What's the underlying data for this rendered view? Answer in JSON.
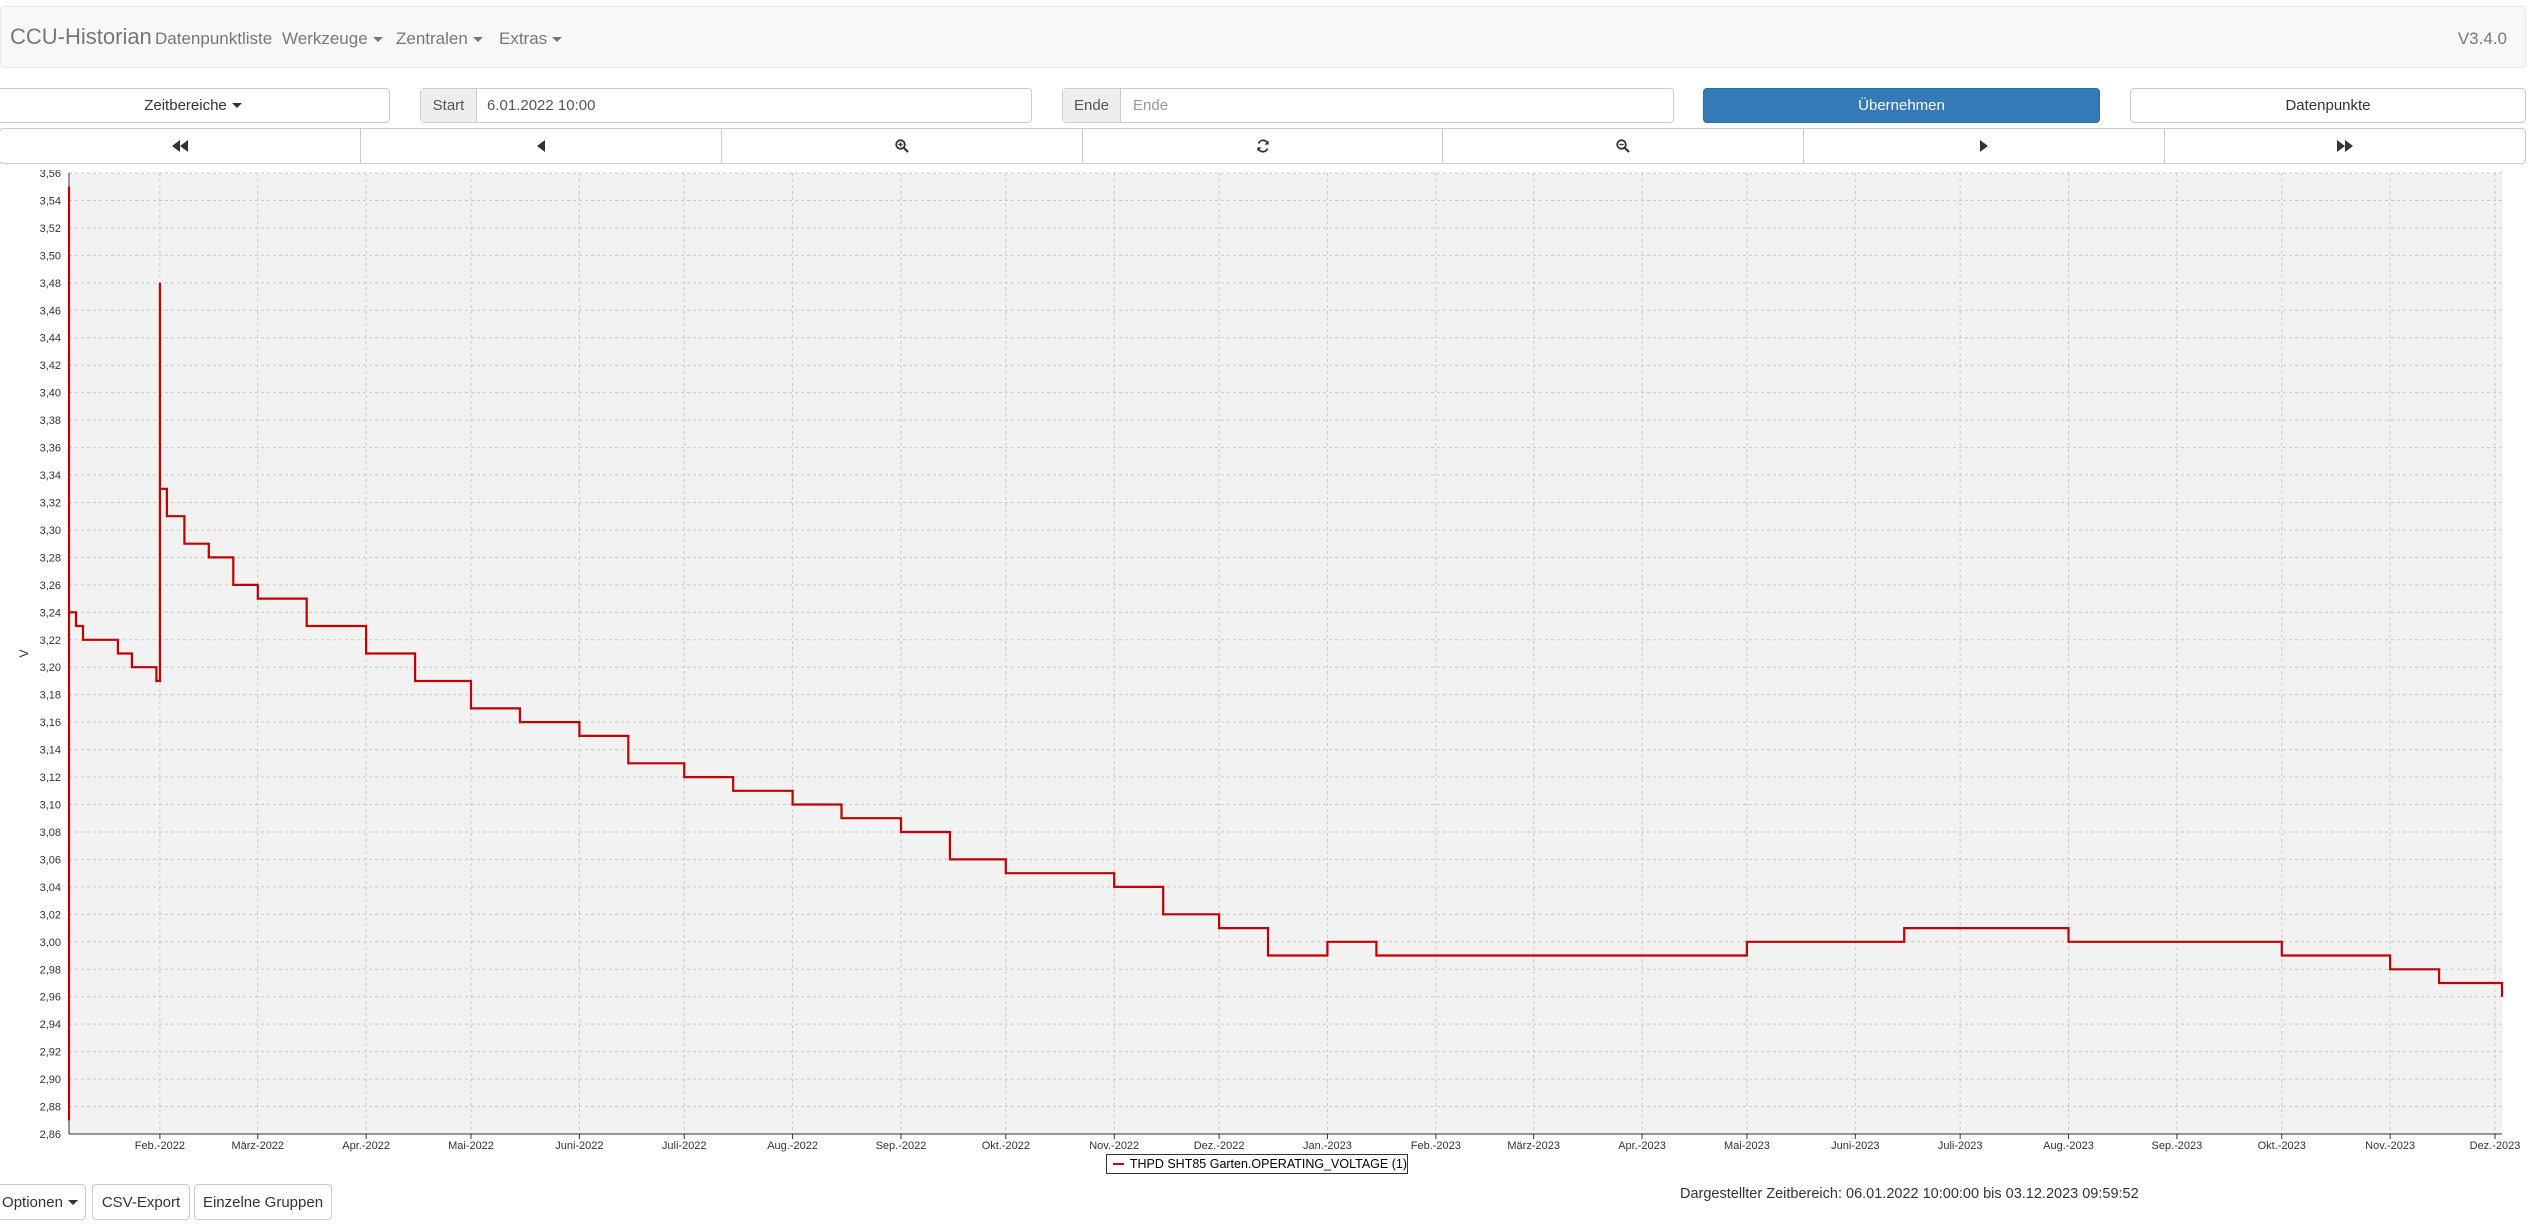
{
  "navbar": {
    "brand": "CCU-Historian",
    "items": [
      "Datenpunktliste",
      "Werkzeuge",
      "Zentralen",
      "Extras"
    ],
    "version": "V3.4.0"
  },
  "controls": {
    "zeitbereiche_label": "Zeitbereiche",
    "start_label": "Start",
    "start_value": "6.01.2022 10:00",
    "ende_label": "Ende",
    "ende_placeholder": "Ende",
    "apply_label": "Übernehmen",
    "datapoints_label": "Datenpunkte"
  },
  "navigation_icons": [
    "fast-backward-icon",
    "step-backward-icon",
    "zoom-in-icon",
    "refresh-icon",
    "zoom-out-icon",
    "step-forward-icon",
    "fast-forward-icon"
  ],
  "bottom": {
    "options_label": "Optionen",
    "csv_label": "CSV-Export",
    "groups_label": "Einzelne Gruppen",
    "range_text": "Dargestellter Zeitbereich: 06.01.2022 10:00:00 bis 03.12.2023 09:59:52"
  },
  "colors": {
    "series": "#c00000",
    "primary": "#337ab7",
    "plot_bg": "#f2f2f2"
  },
  "chart_data": {
    "type": "line",
    "ylabel": "V",
    "ylim": [
      2.86,
      3.56
    ],
    "ytick_step": 0.02,
    "xlim": [
      "2022-01-06",
      "2023-12-03"
    ],
    "x_ticks": [
      {
        "label": "Feb.-2022",
        "date": "2022-02-01"
      },
      {
        "label": "März-2022",
        "date": "2022-03-01"
      },
      {
        "label": "Apr.-2022",
        "date": "2022-04-01"
      },
      {
        "label": "Mai-2022",
        "date": "2022-05-01"
      },
      {
        "label": "Juni-2022",
        "date": "2022-06-01"
      },
      {
        "label": "Juli-2022",
        "date": "2022-07-01"
      },
      {
        "label": "Aug.-2022",
        "date": "2022-08-01"
      },
      {
        "label": "Sep.-2022",
        "date": "2022-09-01"
      },
      {
        "label": "Okt.-2022",
        "date": "2022-10-01"
      },
      {
        "label": "Nov.-2022",
        "date": "2022-11-01"
      },
      {
        "label": "Dez.-2022",
        "date": "2022-12-01"
      },
      {
        "label": "Jan.-2023",
        "date": "2023-01-01"
      },
      {
        "label": "Feb.-2023",
        "date": "2023-02-01"
      },
      {
        "label": "März-2023",
        "date": "2023-03-01"
      },
      {
        "label": "Apr.-2023",
        "date": "2023-04-01"
      },
      {
        "label": "Mai-2023",
        "date": "2023-05-01"
      },
      {
        "label": "Juni-2023",
        "date": "2023-06-01"
      },
      {
        "label": "Juli-2023",
        "date": "2023-07-01"
      },
      {
        "label": "Aug.-2023",
        "date": "2023-08-01"
      },
      {
        "label": "Sep.-2023",
        "date": "2023-09-01"
      },
      {
        "label": "Okt.-2023",
        "date": "2023-10-01"
      },
      {
        "label": "Nov.-2023",
        "date": "2023-11-01"
      },
      {
        "label": "Dez.-2023",
        "date": "2023-12-01"
      }
    ],
    "series": [
      {
        "name": "THPD SHT85 Garten.OPERATING_VOLTAGE (1)",
        "color": "#c00000",
        "points": [
          {
            "x": "2022-01-06",
            "y": 2.87
          },
          {
            "x": "2022-01-06",
            "y": 3.55
          },
          {
            "x": "2022-01-06",
            "y": 3.24
          },
          {
            "x": "2022-01-08",
            "y": 3.23
          },
          {
            "x": "2022-01-10",
            "y": 3.22
          },
          {
            "x": "2022-01-15",
            "y": 3.22
          },
          {
            "x": "2022-01-20",
            "y": 3.21
          },
          {
            "x": "2022-01-24",
            "y": 3.2
          },
          {
            "x": "2022-01-31",
            "y": 3.19
          },
          {
            "x": "2022-02-01",
            "y": 3.48
          },
          {
            "x": "2022-02-01",
            "y": 3.33
          },
          {
            "x": "2022-02-03",
            "y": 3.31
          },
          {
            "x": "2022-02-08",
            "y": 3.29
          },
          {
            "x": "2022-02-15",
            "y": 3.28
          },
          {
            "x": "2022-02-22",
            "y": 3.26
          },
          {
            "x": "2022-03-01",
            "y": 3.25
          },
          {
            "x": "2022-03-15",
            "y": 3.23
          },
          {
            "x": "2022-04-01",
            "y": 3.21
          },
          {
            "x": "2022-04-15",
            "y": 3.19
          },
          {
            "x": "2022-05-01",
            "y": 3.17
          },
          {
            "x": "2022-05-15",
            "y": 3.16
          },
          {
            "x": "2022-06-01",
            "y": 3.15
          },
          {
            "x": "2022-06-15",
            "y": 3.13
          },
          {
            "x": "2022-07-01",
            "y": 3.12
          },
          {
            "x": "2022-07-15",
            "y": 3.11
          },
          {
            "x": "2022-08-01",
            "y": 3.1
          },
          {
            "x": "2022-08-15",
            "y": 3.09
          },
          {
            "x": "2022-09-01",
            "y": 3.08
          },
          {
            "x": "2022-09-15",
            "y": 3.06
          },
          {
            "x": "2022-10-01",
            "y": 3.05
          },
          {
            "x": "2022-10-15",
            "y": 3.05
          },
          {
            "x": "2022-11-01",
            "y": 3.04
          },
          {
            "x": "2022-11-15",
            "y": 3.02
          },
          {
            "x": "2022-12-01",
            "y": 3.01
          },
          {
            "x": "2022-12-15",
            "y": 2.99
          },
          {
            "x": "2023-01-01",
            "y": 3.0
          },
          {
            "x": "2023-01-15",
            "y": 2.99
          },
          {
            "x": "2023-02-01",
            "y": 2.99
          },
          {
            "x": "2023-03-01",
            "y": 2.99
          },
          {
            "x": "2023-04-01",
            "y": 2.99
          },
          {
            "x": "2023-05-01",
            "y": 3.0
          },
          {
            "x": "2023-06-01",
            "y": 3.0
          },
          {
            "x": "2023-06-15",
            "y": 3.01
          },
          {
            "x": "2023-07-01",
            "y": 3.01
          },
          {
            "x": "2023-07-25",
            "y": 3.01
          },
          {
            "x": "2023-08-01",
            "y": 3.0
          },
          {
            "x": "2023-09-01",
            "y": 3.0
          },
          {
            "x": "2023-10-01",
            "y": 2.99
          },
          {
            "x": "2023-10-20",
            "y": 2.99
          },
          {
            "x": "2023-11-01",
            "y": 2.98
          },
          {
            "x": "2023-11-15",
            "y": 2.97
          },
          {
            "x": "2023-12-01",
            "y": 2.97
          },
          {
            "x": "2023-12-03",
            "y": 2.96
          }
        ]
      }
    ]
  }
}
